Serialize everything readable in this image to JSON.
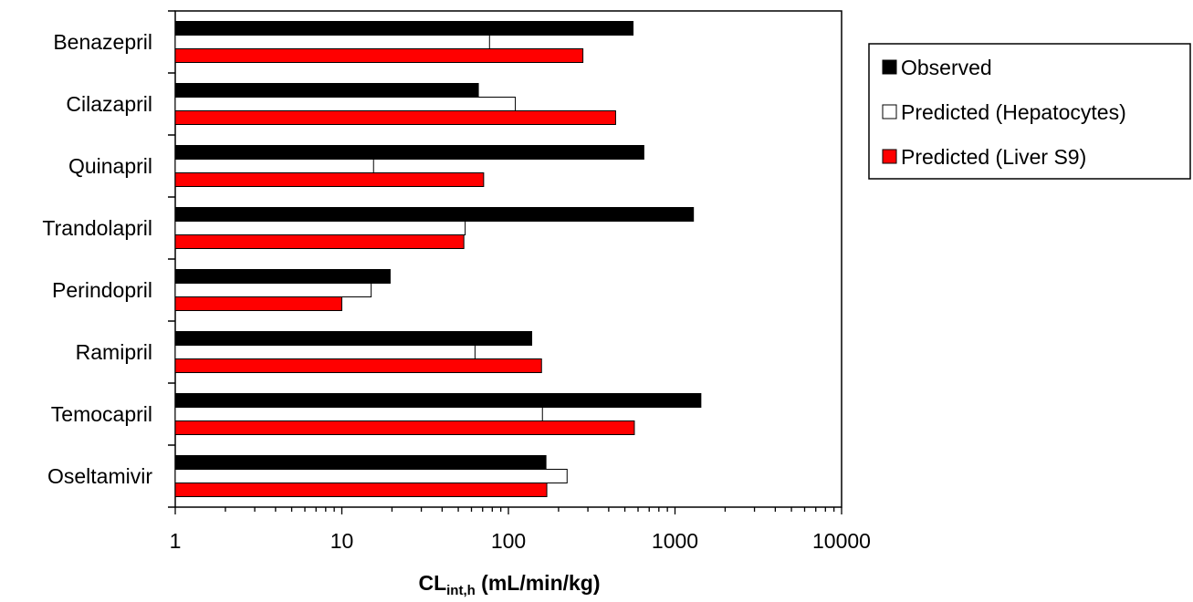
{
  "chart_data": {
    "type": "bar",
    "orientation": "horizontal",
    "x_scale": "log",
    "xlim": [
      1,
      10000
    ],
    "xticks": [
      1,
      10,
      100,
      1000,
      10000
    ],
    "xtick_labels": [
      "1",
      "10",
      "100",
      "1000",
      "10000"
    ],
    "xlabel_main": "CL",
    "xlabel_sub": "int,h",
    "xlabel_rest": " (mL/min/kg)",
    "grid": false,
    "legend_position": "right",
    "categories": [
      "Benazepril",
      "Cilazapril",
      "Quinapril",
      "Trandolapril",
      "Perindopril",
      "Ramipril",
      "Temocapril",
      "Oseltamivir"
    ],
    "series": [
      {
        "name": "Observed",
        "color": "#000000",
        "values": [
          560,
          66,
          650,
          1290,
          19.5,
          138,
          1430,
          168
        ]
      },
      {
        "name": "Predicted (Hepatocytes)",
        "color": "#ffffff",
        "values": [
          77,
          110,
          15.5,
          55,
          15,
          63,
          160,
          225
        ]
      },
      {
        "name": "Predicted (Liver S9)",
        "color": "#ff0000",
        "values": [
          280,
          440,
          71,
          54,
          10,
          158,
          570,
          170
        ]
      }
    ]
  }
}
